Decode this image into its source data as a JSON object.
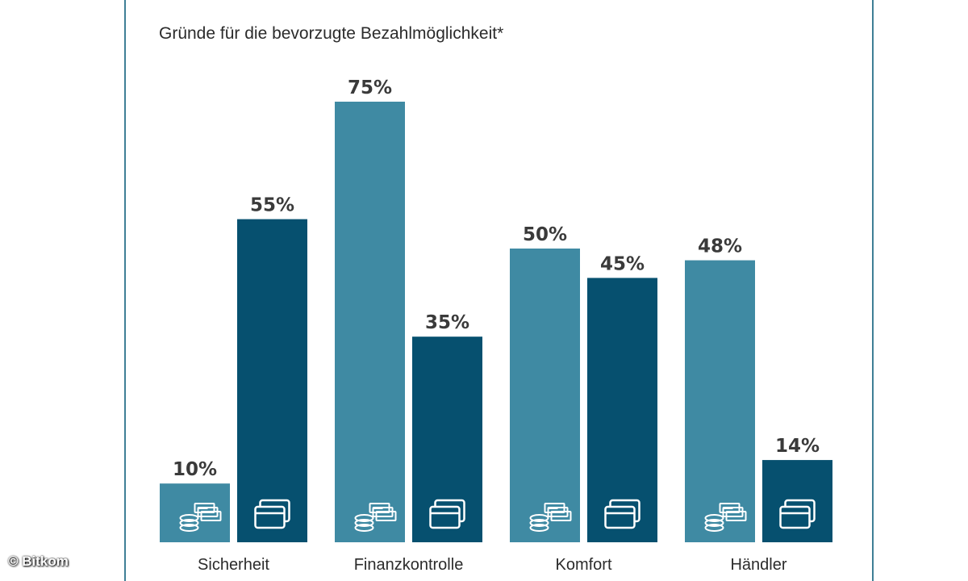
{
  "chart_data": {
    "type": "bar",
    "title": "Gründe für die bevorzugte Bezahlmöglichkeit*",
    "categories": [
      "Sicherheit",
      "Finanzkontrolle",
      "Komfort",
      "Händler"
    ],
    "series": [
      {
        "icon": "cash-stack-icon",
        "color": "#3f8aa3",
        "values": [
          10,
          75,
          50,
          48
        ],
        "labels": [
          "10%",
          "75%",
          "50%",
          "48%"
        ]
      },
      {
        "icon": "card-icon",
        "color": "#06506f",
        "values": [
          55,
          35,
          45,
          14
        ],
        "labels": [
          "55%",
          "35%",
          "45%",
          "14%"
        ]
      }
    ],
    "ylim": [
      0,
      75
    ],
    "grid": false
  },
  "copyright": "© Bitkom",
  "colors": {
    "frame": "#3f7f96",
    "text": "#2b2b2b"
  }
}
